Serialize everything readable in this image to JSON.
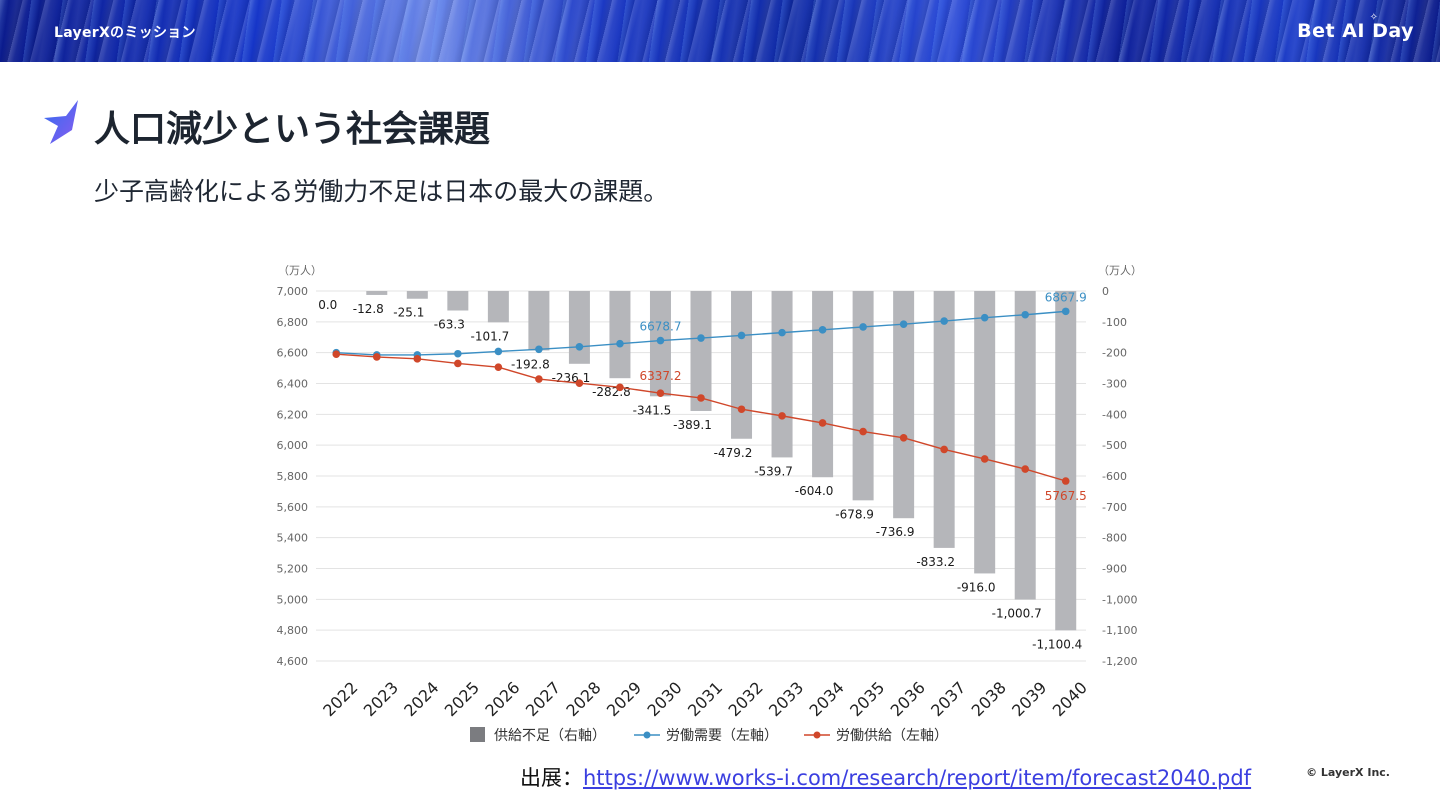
{
  "header": {
    "section_label": "LayerXのミッション",
    "brand": "Bet AI Day"
  },
  "slide": {
    "title": "人口減少という社会課題",
    "subtitle": "少子高齢化による労働力不足は日本の最大の課題。"
  },
  "colors": {
    "bar": "#b5b6ba",
    "demand": "#3b8fc4",
    "supply": "#d0472a",
    "grid": "#e3e3e3",
    "axis_text": "#666666"
  },
  "chart_data": {
    "type": "bar+line",
    "categories": [
      "2022",
      "2023",
      "2024",
      "2025",
      "2026",
      "2027",
      "2028",
      "2029",
      "2030",
      "2031",
      "2032",
      "2033",
      "2034",
      "2035",
      "2036",
      "2037",
      "2038",
      "2039",
      "2040"
    ],
    "left_axis": {
      "unit_label": "（万人）",
      "ylim": [
        4600,
        7000
      ],
      "ticks": [
        7000,
        6800,
        6600,
        6400,
        6200,
        6000,
        5800,
        5600,
        5400,
        5200,
        5000,
        4800,
        4600
      ],
      "tick_labels": [
        "7,000",
        "6,800",
        "6,600",
        "6,400",
        "6,200",
        "6,000",
        "5,800",
        "5,600",
        "5,400",
        "5,200",
        "5,000",
        "4,800",
        "4,600"
      ]
    },
    "right_axis": {
      "unit_label": "（万人）",
      "ylim": [
        -1200,
        0
      ],
      "ticks": [
        0,
        -100,
        -200,
        -300,
        -400,
        -500,
        -600,
        -700,
        -800,
        -900,
        -1000,
        -1100,
        -1200
      ],
      "tick_labels": [
        "0",
        "-100",
        "-200",
        "-300",
        "-400",
        "-500",
        "-600",
        "-700",
        "-800",
        "-900",
        "-1,000",
        "-1,100",
        "-1,200"
      ]
    },
    "grid": true,
    "legend_position": "bottom",
    "series": [
      {
        "name": "供給不足（右軸）",
        "kind": "bar",
        "axis": "right",
        "values": [
          0.0,
          -12.8,
          -25.1,
          -63.3,
          -101.7,
          -192.8,
          -236.1,
          -282.8,
          -341.5,
          -389.1,
          -479.2,
          -539.7,
          -604.0,
          -678.9,
          -736.9,
          -833.2,
          -916.0,
          -1000.7,
          -1100.4
        ],
        "labels": [
          "0.0",
          "-12.8",
          "-25.1",
          "-63.3",
          "-101.7",
          "-192.8",
          "-236.1",
          "-282.8",
          "-341.5",
          "-389.1",
          "-479.2",
          "-539.7",
          "-604.0",
          "-678.9",
          "-736.9",
          "-833.2",
          "-916.0",
          "-1,000.7",
          "-1,100.4"
        ]
      },
      {
        "name": "労働需要（左軸）",
        "kind": "line",
        "axis": "left",
        "values": [
          6600,
          6585,
          6585,
          6593,
          6608,
          6622,
          6638,
          6658,
          6678.7,
          6695,
          6712,
          6730,
          6748,
          6767,
          6785,
          6805,
          6827,
          6846,
          6867.9
        ],
        "point_labels": {
          "8": "6678.7",
          "18": "6867.9"
        }
      },
      {
        "name": "労働供給（左軸）",
        "kind": "line",
        "axis": "left",
        "values": [
          6590,
          6572,
          6560,
          6530,
          6506,
          6429,
          6402,
          6375,
          6337.2,
          6306,
          6233,
          6190,
          6144,
          6088,
          6048,
          5972,
          5911,
          5845,
          5767.5
        ],
        "point_labels": {
          "8": "6337.2",
          "18": "5767.5"
        }
      }
    ]
  },
  "source": {
    "prefix": "出展：",
    "url": "https://www.works-i.com/research/report/item/forecast2040.pdf"
  },
  "footer": {
    "copyright": "© LayerX Inc."
  }
}
